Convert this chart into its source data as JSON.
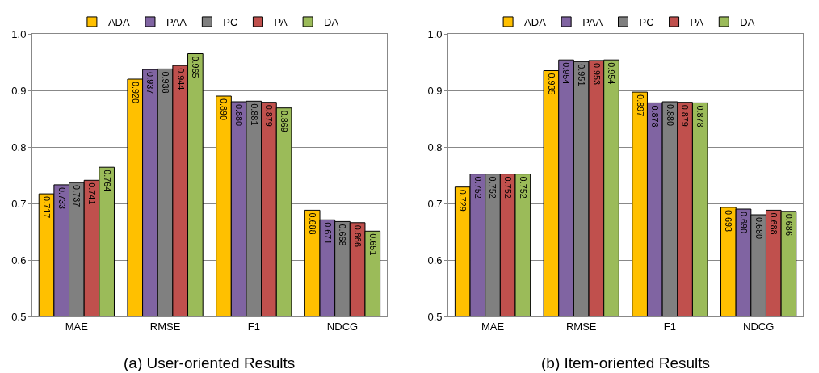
{
  "chart_data": [
    {
      "type": "bar",
      "categories": [
        "MAE",
        "RMSE",
        "F1",
        "NDCG"
      ],
      "ylim": [
        0.5,
        1.0
      ],
      "yticks": [
        0.5,
        0.6,
        0.7,
        0.8,
        0.9,
        {
          "value": 1.0,
          "label": "1.0"
        }
      ],
      "grid": "y",
      "legend": "top",
      "annotations": [
        "(a) User-oriented Results"
      ],
      "series": [
        {
          "name": "ADA",
          "color": "#ffc000",
          "values": [
            0.717,
            0.92,
            0.89,
            0.688
          ],
          "value_labels": [
            "0.717",
            "0.920",
            "0.890",
            "0.688"
          ]
        },
        {
          "name": "PAA",
          "color": "#8064a2",
          "values": [
            0.733,
            0.937,
            0.88,
            0.671
          ],
          "value_labels": [
            "0.733",
            "0.937",
            "0.880",
            "0.671"
          ]
        },
        {
          "name": "PC",
          "color": "#808080",
          "values": [
            0.737,
            0.938,
            0.881,
            0.668
          ],
          "value_labels": [
            "0.737",
            "0.938",
            "0.881",
            "0.668"
          ]
        },
        {
          "name": "PA",
          "color": "#c0504d",
          "values": [
            0.741,
            0.944,
            0.879,
            0.666
          ],
          "value_labels": [
            "0.741",
            "0.944",
            "0.879",
            "0.666"
          ]
        },
        {
          "name": "DA",
          "color": "#9bbb59",
          "values": [
            0.764,
            0.965,
            0.869,
            0.651
          ],
          "value_labels": [
            "0.764",
            "0.965",
            "0.869",
            "0.651"
          ]
        }
      ]
    },
    {
      "type": "bar",
      "categories": [
        "MAE",
        "RMSE",
        "F1",
        "NDCG"
      ],
      "ylim": [
        0.5,
        1.0
      ],
      "yticks": [
        0.5,
        0.6,
        0.7,
        0.8,
        0.9,
        {
          "value": 1.0,
          "label": "1.0"
        }
      ],
      "grid": "y",
      "legend": "top",
      "annotations": [
        "(b) Item-oriented Results"
      ],
      "series": [
        {
          "name": "ADA",
          "color": "#ffc000",
          "values": [
            0.729,
            0.935,
            0.897,
            0.693
          ],
          "value_labels": [
            "0.729",
            "0.935",
            "0.897",
            "0.693"
          ]
        },
        {
          "name": "PAA",
          "color": "#8064a2",
          "values": [
            0.752,
            0.954,
            0.878,
            0.69
          ],
          "value_labels": [
            "0.752",
            "0.954",
            "0.878",
            "0.690"
          ]
        },
        {
          "name": "PC",
          "color": "#808080",
          "values": [
            0.752,
            0.951,
            0.88,
            0.68
          ],
          "value_labels": [
            "0.752",
            "0.951",
            "0.880",
            "0.680"
          ]
        },
        {
          "name": "PA",
          "color": "#c0504d",
          "values": [
            0.752,
            0.953,
            0.879,
            0.688
          ],
          "value_labels": [
            "0.752",
            "0.953",
            "0.879",
            "0.688"
          ]
        },
        {
          "name": "DA",
          "color": "#9bbb59",
          "values": [
            0.752,
            0.954,
            0.878,
            0.686
          ],
          "value_labels": [
            "0.752",
            "0.954",
            "0.878",
            "0.686"
          ]
        }
      ]
    }
  ]
}
